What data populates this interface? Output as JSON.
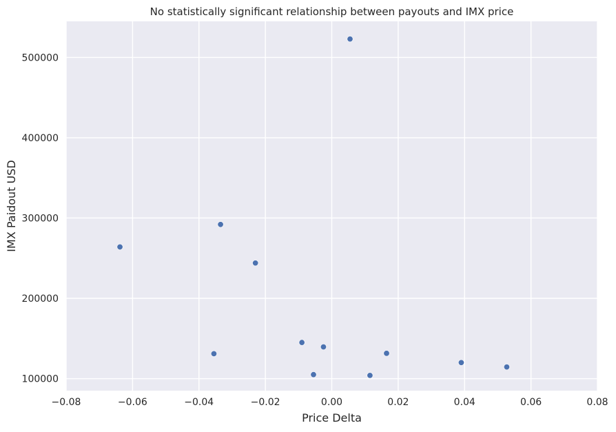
{
  "chart_data": {
    "type": "scatter",
    "title": "No statistically significant relationship between payouts and IMX price",
    "xlabel": "Price Delta",
    "ylabel": "IMX Paidout USD",
    "xlim": [
      -0.08,
      0.08
    ],
    "ylim": [
      85000,
      545000
    ],
    "x_ticks": [
      -0.08,
      -0.06,
      -0.04,
      -0.02,
      0.0,
      0.02,
      0.04,
      0.06,
      0.08
    ],
    "x_tick_labels": [
      "−0.08",
      "−0.06",
      "−0.04",
      "−0.02",
      "0.00",
      "0.02",
      "0.04",
      "0.06",
      "0.08"
    ],
    "y_ticks": [
      100000,
      200000,
      300000,
      400000,
      500000
    ],
    "y_tick_labels": [
      "100000",
      "200000",
      "300000",
      "400000",
      "500000"
    ],
    "grid": true,
    "point_color": "#4c72b0",
    "background_color": "#eaeaf2",
    "points": [
      {
        "x": -0.0638,
        "y": 264000
      },
      {
        "x": -0.0335,
        "y": 292000
      },
      {
        "x": -0.0355,
        "y": 131000
      },
      {
        "x": -0.023,
        "y": 244000
      },
      {
        "x": -0.009,
        "y": 145000
      },
      {
        "x": -0.0025,
        "y": 139500
      },
      {
        "x": -0.0055,
        "y": 105000
      },
      {
        "x": 0.0055,
        "y": 523000
      },
      {
        "x": 0.0115,
        "y": 104000
      },
      {
        "x": 0.0165,
        "y": 131500
      },
      {
        "x": 0.039,
        "y": 120000
      },
      {
        "x": 0.0527,
        "y": 114500
      }
    ]
  }
}
